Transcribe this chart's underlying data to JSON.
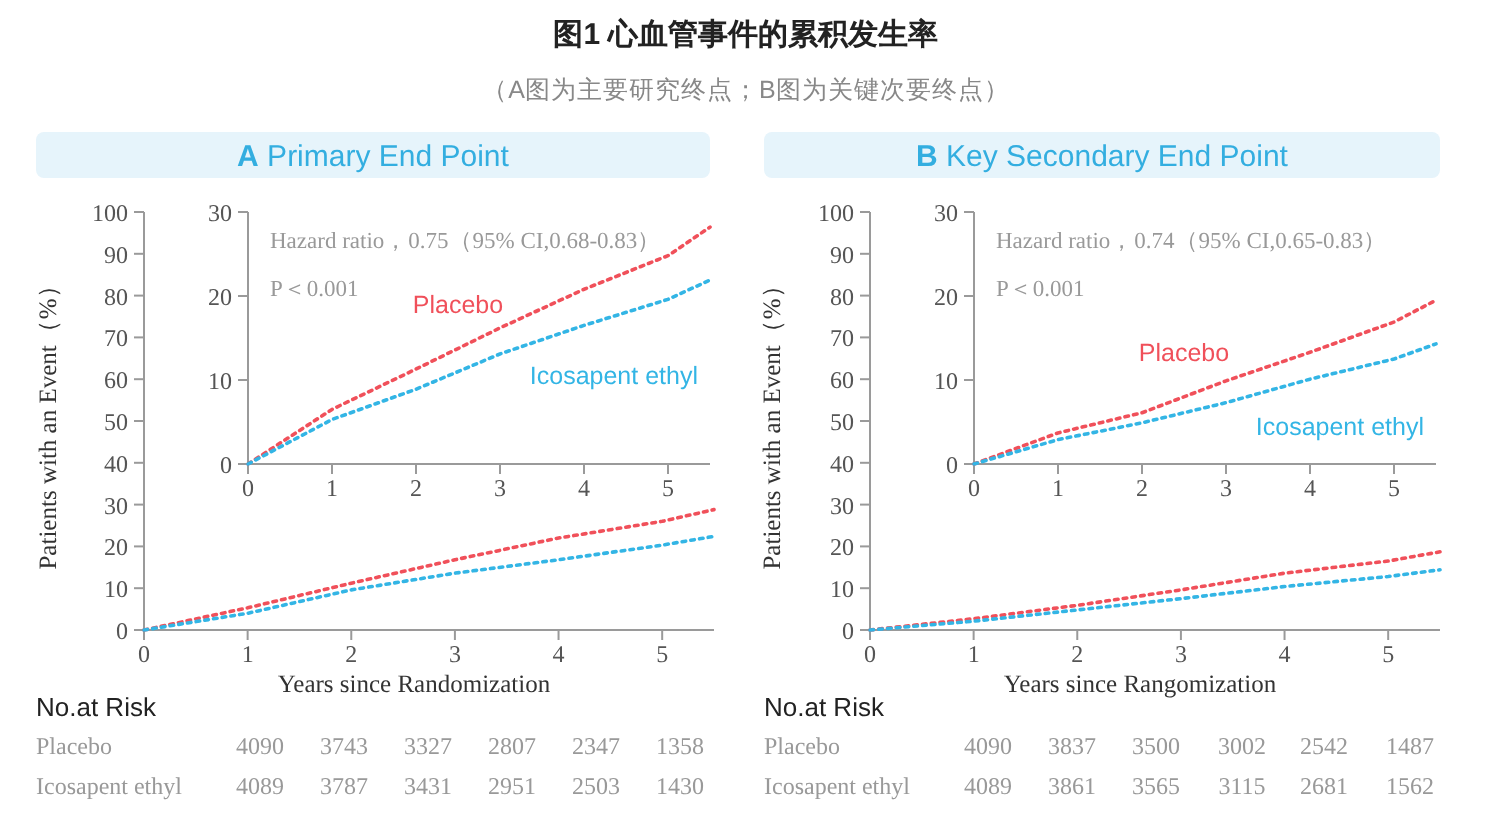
{
  "chart_data": [
    {
      "type": "other",
      "title": "图1 心血管事件的累积发生率",
      "subtitle": "（A图为主要研究终点；B图为关键次要终点）"
    },
    {
      "type": "line",
      "title": "A Primary End Point",
      "xlabel": "Years since Randomization",
      "ylabel": "Patients with an Event（%）",
      "x": [
        0,
        1,
        2,
        3,
        4,
        5,
        5.5
      ],
      "xlim": [
        0,
        5.5
      ],
      "xticks": [
        0,
        1,
        2,
        3,
        4,
        5
      ],
      "ylim": [
        0,
        100
      ],
      "yticks": [
        0,
        10,
        20,
        30,
        40,
        50,
        60,
        70,
        80,
        90,
        100
      ],
      "line_style": "dotted",
      "grid": false,
      "legend": false,
      "series": [
        {
          "color": "#f0505a",
          "values": [
            0,
            5.3,
            11.2,
            16.8,
            22,
            26,
            28.8
          ]
        },
        {
          "color": "#33b5e5",
          "values": [
            0,
            4,
            9.6,
            13.6,
            16.8,
            20.3,
            22.4
          ]
        }
      ]
    },
    {
      "type": "line",
      "annotations": [
        "Hazard ratio，0.75（95% CI,0.68-0.83）",
        "P＜0.001"
      ],
      "x": [
        0,
        1,
        2,
        3,
        4,
        5,
        5.5
      ],
      "xlim": [
        0,
        5.5
      ],
      "xticks": [
        0,
        1,
        2,
        3,
        4,
        5
      ],
      "ylim": [
        0,
        30
      ],
      "yticks": [
        0,
        10,
        20,
        30
      ],
      "line_style": "dotted",
      "grid": false,
      "legend": false,
      "series": [
        {
          "name": "Placebo",
          "color": "#f0505a",
          "values": [
            0,
            6.5,
            11.3,
            16.2,
            20.8,
            24.8,
            28.2
          ]
        },
        {
          "name": "Icosapent ethyl",
          "color": "#33b5e5",
          "values": [
            0,
            5.3,
            8.9,
            13.1,
            16.5,
            19.6,
            21.9
          ]
        }
      ]
    },
    {
      "type": "other",
      "title": "No.at Risk",
      "annotations": [
        "Placebo",
        "4090",
        "3743",
        "3327",
        "2807",
        "2347",
        "1358",
        "Icosapent ethyl",
        "4089",
        "3787",
        "3431",
        "2951",
        "2503",
        "1430"
      ]
    },
    {
      "type": "line",
      "title": "B Key Secondary End Point",
      "xlabel": "Years since Rangomization",
      "ylabel": "Patients with an Event（%）",
      "x": [
        0,
        1,
        2,
        3,
        4,
        5,
        5.5
      ],
      "xlim": [
        0,
        5.5
      ],
      "xticks": [
        0,
        1,
        2,
        3,
        4,
        5
      ],
      "ylim": [
        0,
        100
      ],
      "yticks": [
        0,
        10,
        20,
        30,
        40,
        50,
        60,
        70,
        80,
        90,
        100
      ],
      "line_style": "dotted",
      "grid": false,
      "legend": false,
      "series": [
        {
          "color": "#f0505a",
          "values": [
            0,
            2.7,
            5.9,
            9.6,
            13.6,
            16.5,
            18.7
          ]
        },
        {
          "color": "#33b5e5",
          "values": [
            0,
            2.1,
            4.8,
            7.5,
            10.4,
            12.8,
            14.4
          ]
        }
      ]
    },
    {
      "type": "line",
      "annotations": [
        "Hazard ratio，0.74（95% CI,0.65-0.83）",
        "P＜0.001"
      ],
      "x": [
        0,
        1,
        2,
        3,
        4,
        5,
        5.5
      ],
      "xlim": [
        0,
        5.5
      ],
      "xticks": [
        0,
        1,
        2,
        3,
        4,
        5
      ],
      "ylim": [
        0,
        30
      ],
      "yticks": [
        0,
        10,
        20,
        30
      ],
      "line_style": "dotted",
      "grid": false,
      "legend": false,
      "series": [
        {
          "name": "Placebo",
          "color": "#f0505a",
          "values": [
            0,
            3.7,
            6.1,
            9.9,
            13.3,
            16.9,
            19.5
          ]
        },
        {
          "name": "Icosapent ethyl",
          "color": "#33b5e5",
          "values": [
            0,
            2.9,
            4.9,
            7.3,
            10.1,
            12.5,
            14.3
          ]
        }
      ]
    },
    {
      "type": "other",
      "title": "No.at Risk",
      "annotations": [
        "Placebo",
        "4090",
        "3837",
        "3500",
        "3002",
        "2542",
        "1487",
        "Icosapent ethyl",
        "4089",
        "3861",
        "3565",
        "3115",
        "2681",
        "1562"
      ]
    }
  ]
}
